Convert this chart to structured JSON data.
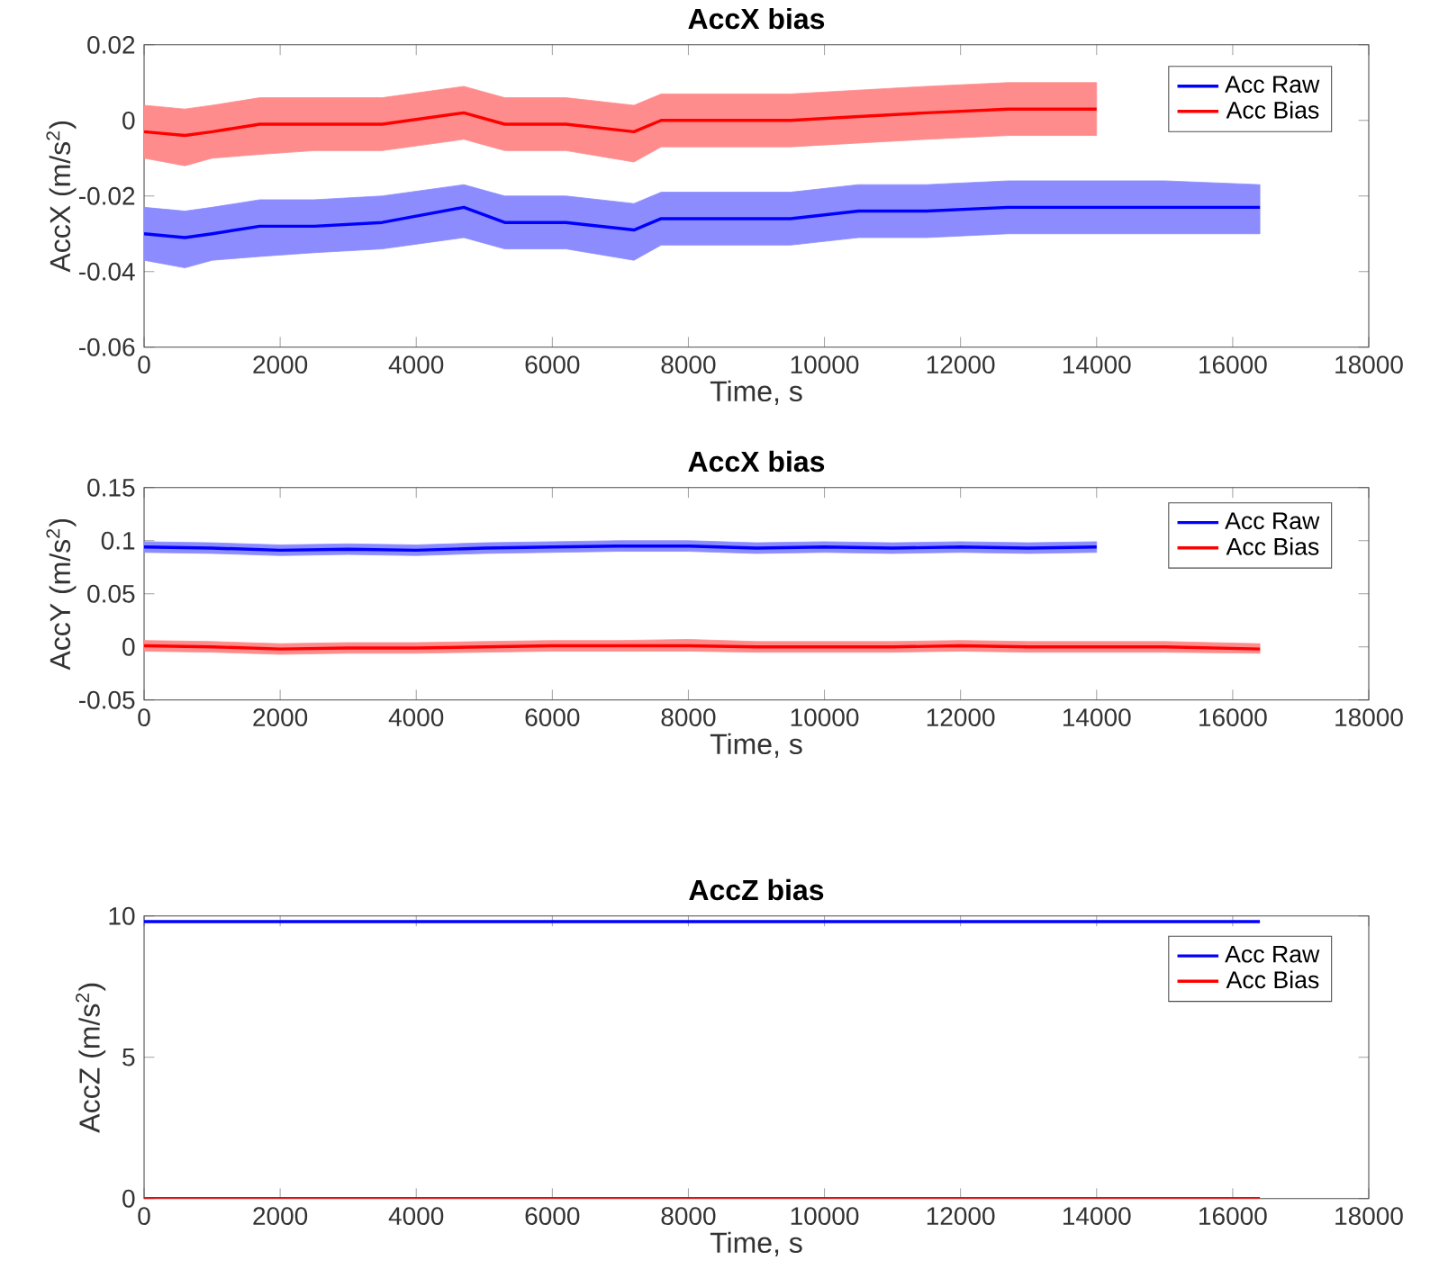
{
  "chart_data": [
    {
      "type": "line",
      "title": "AccX bias",
      "xlabel": "Time, s",
      "ylabel": "AccX (m/s$^{2}$)",
      "legend": "top right",
      "grid": false,
      "xlim": [
        0,
        18000
      ],
      "xticks": [
        0,
        2000,
        4000,
        6000,
        8000,
        10000,
        12000,
        14000,
        16000,
        18000
      ],
      "ylim": [
        -0.06,
        0.02
      ],
      "yticks": [
        -0.06,
        -0.04,
        -0.02,
        0,
        0.02
      ],
      "series": [
        {
          "name": "Acc Raw",
          "color": "#0000ff",
          "x": [
            0,
            600,
            1000,
            1700,
            2500,
            3500,
            4700,
            5300,
            6200,
            7200,
            7600,
            8500,
            9500,
            10500,
            11500,
            12700,
            14000,
            15000,
            16400
          ],
          "values": [
            -0.03,
            -0.031,
            -0.03,
            -0.028,
            -0.028,
            -0.027,
            -0.023,
            -0.027,
            -0.027,
            -0.029,
            -0.026,
            -0.026,
            -0.026,
            -0.024,
            -0.024,
            -0.023,
            -0.023,
            -0.023,
            -0.023
          ],
          "lower": [
            -0.037,
            -0.039,
            -0.037,
            -0.036,
            -0.035,
            -0.034,
            -0.031,
            -0.034,
            -0.034,
            -0.037,
            -0.033,
            -0.033,
            -0.033,
            -0.031,
            -0.031,
            -0.03,
            -0.03,
            -0.03,
            -0.03
          ],
          "upper": [
            -0.023,
            -0.024,
            -0.023,
            -0.021,
            -0.021,
            -0.02,
            -0.017,
            -0.02,
            -0.02,
            -0.022,
            -0.019,
            -0.019,
            -0.019,
            -0.017,
            -0.017,
            -0.016,
            -0.016,
            -0.016,
            -0.017
          ]
        },
        {
          "name": "Acc Bias",
          "color": "#ff0000",
          "x": [
            0,
            600,
            1000,
            1700,
            2500,
            3500,
            4700,
            5300,
            6200,
            7200,
            7600,
            8500,
            9500,
            10500,
            11500,
            12700,
            14000
          ],
          "values": [
            -0.003,
            -0.004,
            -0.003,
            -0.001,
            -0.001,
            -0.001,
            0.002,
            -0.001,
            -0.001,
            -0.003,
            0.0,
            0.0,
            0.0,
            0.001,
            0.002,
            0.003,
            0.003
          ],
          "lower": [
            -0.01,
            -0.012,
            -0.01,
            -0.009,
            -0.008,
            -0.008,
            -0.005,
            -0.008,
            -0.008,
            -0.011,
            -0.007,
            -0.007,
            -0.007,
            -0.006,
            -0.005,
            -0.004,
            -0.004
          ],
          "upper": [
            0.004,
            0.003,
            0.004,
            0.006,
            0.006,
            0.006,
            0.009,
            0.006,
            0.006,
            0.004,
            0.007,
            0.007,
            0.007,
            0.008,
            0.009,
            0.01,
            0.01
          ]
        }
      ]
    },
    {
      "type": "line",
      "title": "AccX bias",
      "xlabel": "Time, s",
      "ylabel": "AccY (m/s$^{2}$)",
      "legend": "top right",
      "grid": false,
      "xlim": [
        0,
        18000
      ],
      "xticks": [
        0,
        2000,
        4000,
        6000,
        8000,
        10000,
        12000,
        14000,
        16000,
        18000
      ],
      "ylim": [
        -0.05,
        0.15
      ],
      "yticks": [
        -0.05,
        0,
        0.05,
        0.1,
        0.15
      ],
      "series": [
        {
          "name": "Acc Raw",
          "color": "#0000ff",
          "x": [
            0,
            1000,
            2000,
            3000,
            4000,
            5000,
            6000,
            7000,
            8000,
            9000,
            10000,
            11000,
            12000,
            13000,
            14000
          ],
          "values": [
            0.094,
            0.093,
            0.091,
            0.092,
            0.091,
            0.093,
            0.094,
            0.095,
            0.095,
            0.093,
            0.094,
            0.093,
            0.094,
            0.093,
            0.094
          ],
          "lower": [
            0.089,
            0.088,
            0.086,
            0.087,
            0.086,
            0.088,
            0.089,
            0.09,
            0.09,
            0.088,
            0.089,
            0.088,
            0.089,
            0.088,
            0.089
          ],
          "upper": [
            0.099,
            0.098,
            0.096,
            0.097,
            0.096,
            0.098,
            0.099,
            0.1,
            0.1,
            0.098,
            0.099,
            0.098,
            0.099,
            0.098,
            0.099
          ]
        },
        {
          "name": "Acc Bias",
          "color": "#ff0000",
          "x": [
            0,
            1000,
            2000,
            3000,
            4000,
            5000,
            6000,
            7000,
            8000,
            9000,
            10000,
            11000,
            12000,
            13000,
            14000,
            15000,
            16400
          ],
          "values": [
            0.001,
            0.0,
            -0.002,
            -0.001,
            -0.001,
            0.0,
            0.001,
            0.001,
            0.001,
            0.0,
            0.0,
            0.0,
            0.001,
            0.0,
            0.0,
            0.0,
            -0.002
          ],
          "lower": [
            -0.004,
            -0.005,
            -0.007,
            -0.006,
            -0.006,
            -0.005,
            -0.004,
            -0.004,
            -0.004,
            -0.005,
            -0.005,
            -0.005,
            -0.004,
            -0.005,
            -0.005,
            -0.005,
            -0.006
          ],
          "upper": [
            0.006,
            0.005,
            0.003,
            0.004,
            0.004,
            0.005,
            0.006,
            0.006,
            0.007,
            0.005,
            0.005,
            0.005,
            0.006,
            0.005,
            0.005,
            0.005,
            0.003
          ]
        }
      ]
    },
    {
      "type": "line",
      "title": "AccZ bias",
      "xlabel": "Time, s",
      "ylabel": "AccZ (m/s$^{2}$)",
      "legend": "top right",
      "grid": false,
      "xlim": [
        0,
        18000
      ],
      "xticks": [
        0,
        2000,
        4000,
        6000,
        8000,
        10000,
        12000,
        14000,
        16000,
        18000
      ],
      "ylim": [
        0,
        10
      ],
      "yticks": [
        0,
        5,
        10
      ],
      "series": [
        {
          "name": "Acc Raw",
          "color": "#0000ff",
          "x": [
            0,
            16400
          ],
          "values": [
            9.8,
            9.8
          ]
        },
        {
          "name": "Acc Bias",
          "color": "#ff0000",
          "x": [
            0,
            16400
          ],
          "values": [
            0,
            0
          ]
        }
      ]
    }
  ]
}
